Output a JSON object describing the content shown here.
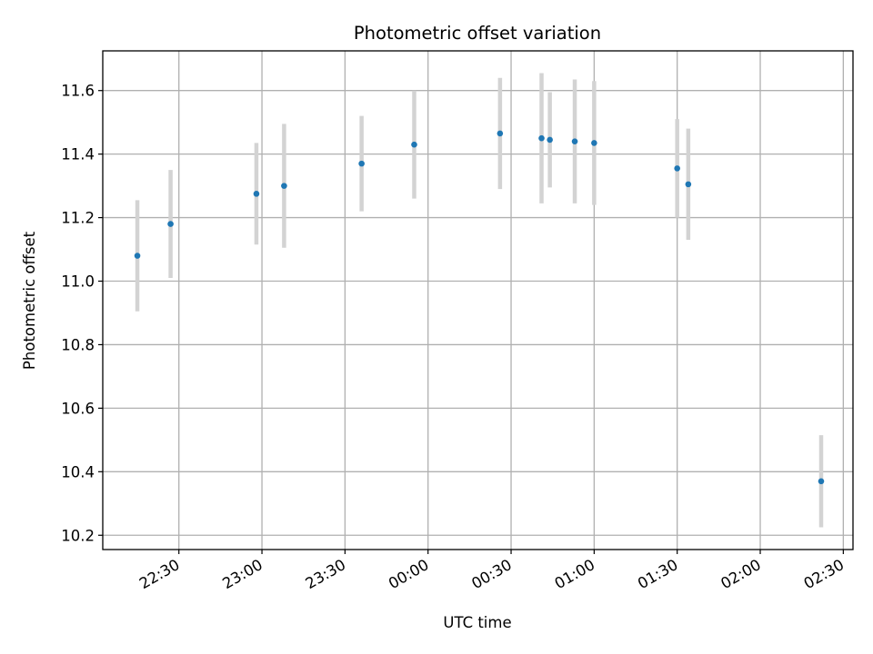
{
  "chart_data": {
    "type": "scatter",
    "title": "Photometric offset variation",
    "xlabel": "UTC time",
    "ylabel": "Photometric offset",
    "x_tick_labels": [
      "22:30",
      "23:00",
      "23:30",
      "00:00",
      "00:30",
      "01:00",
      "01:30",
      "02:00",
      "02:30"
    ],
    "x_ticks_minutes": [
      0,
      30,
      60,
      90,
      120,
      150,
      180,
      210,
      240
    ],
    "xlim_minutes": [
      -27.5,
      243.5
    ],
    "y_ticks": [
      10.2,
      10.4,
      10.6,
      10.8,
      11.0,
      11.2,
      11.4,
      11.6
    ],
    "ylim": [
      10.155,
      11.725
    ],
    "grid": true,
    "points": [
      {
        "t": "22:15",
        "y": 11.08,
        "err": 0.175
      },
      {
        "t": "22:27",
        "y": 11.18,
        "err": 0.17
      },
      {
        "t": "22:58",
        "y": 11.275,
        "err": 0.16
      },
      {
        "t": "23:08",
        "y": 11.3,
        "err": 0.195
      },
      {
        "t": "23:36",
        "y": 11.37,
        "err": 0.15
      },
      {
        "t": "23:55",
        "y": 11.43,
        "err": 0.17
      },
      {
        "t": "00:26",
        "y": 11.465,
        "err": 0.175
      },
      {
        "t": "00:41",
        "y": 11.45,
        "err": 0.205
      },
      {
        "t": "00:44",
        "y": 11.445,
        "err": 0.15
      },
      {
        "t": "00:53",
        "y": 11.44,
        "err": 0.195
      },
      {
        "t": "01:00",
        "y": 11.435,
        "err": 0.195
      },
      {
        "t": "01:30",
        "y": 11.355,
        "err": 0.155
      },
      {
        "t": "01:34",
        "y": 11.305,
        "err": 0.175
      },
      {
        "t": "02:22",
        "y": 10.37,
        "err": 0.145
      }
    ],
    "colors": {
      "marker": "#1f77b4",
      "errorbar": "#d3d3d3",
      "grid": "#b0b0b0",
      "axes": "#000000"
    }
  }
}
